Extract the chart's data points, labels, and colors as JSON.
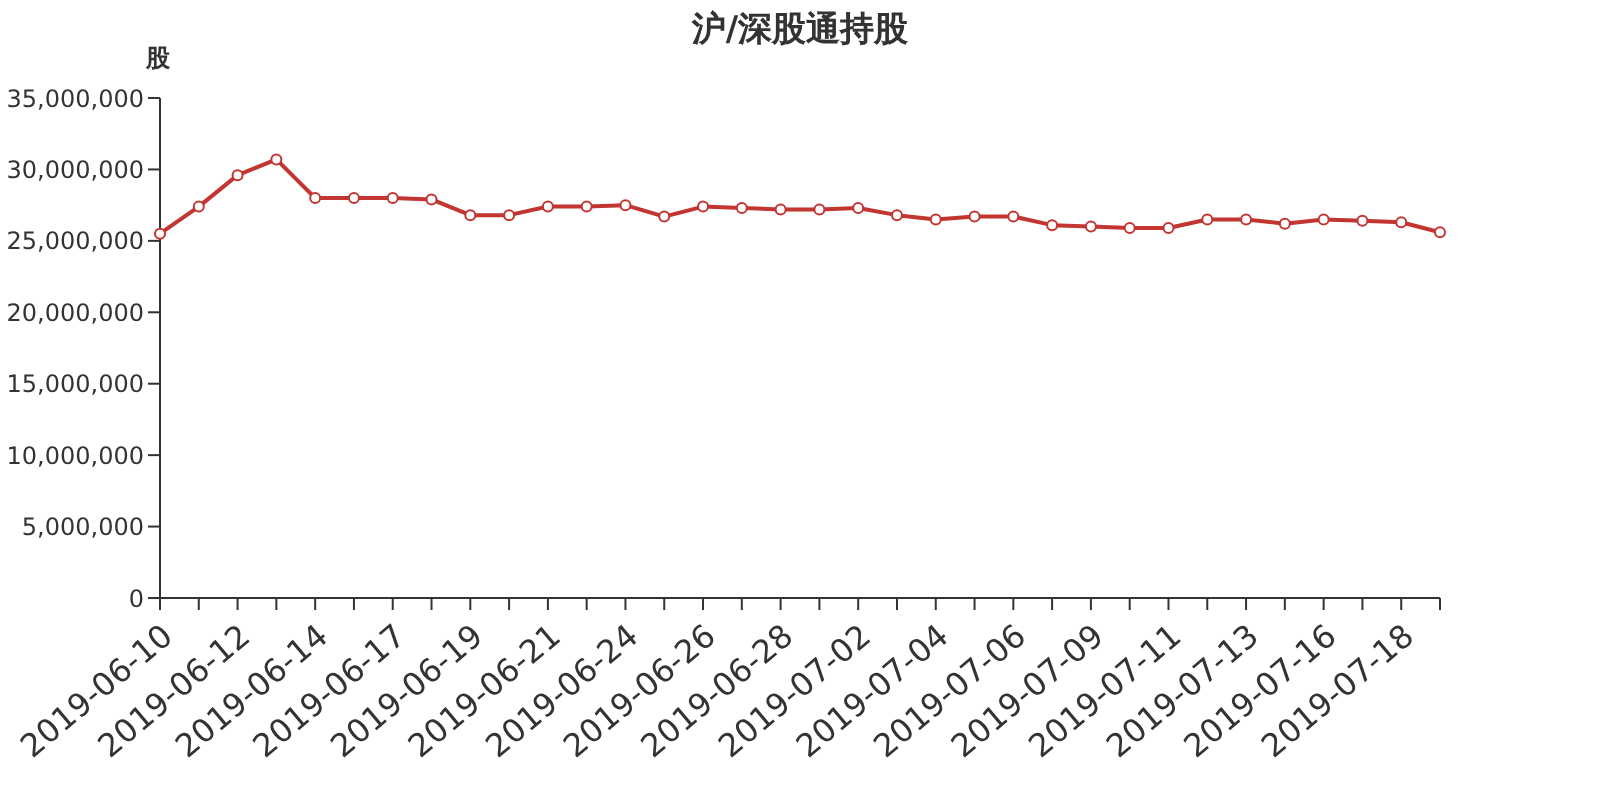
{
  "chart_data": {
    "type": "line",
    "title": "沪/深股通持股",
    "ylabel": "股",
    "categories": [
      "2019-06-10",
      null,
      "2019-06-12",
      null,
      "2019-06-14",
      null,
      "2019-06-17",
      null,
      "2019-06-19",
      null,
      "2019-06-21",
      null,
      "2019-06-24",
      null,
      "2019-06-26",
      null,
      "2019-06-28",
      null,
      "2019-07-02",
      null,
      "2019-07-04",
      null,
      "2019-07-06",
      null,
      "2019-07-09",
      null,
      "2019-07-11",
      null,
      "2019-07-13",
      null,
      "2019-07-16",
      null,
      "2019-07-18",
      null
    ],
    "series": [
      {
        "color": "#c23531",
        "values": [
          25500000,
          27400000,
          29600000,
          30700000,
          28000000,
          28000000,
          28000000,
          27900000,
          26800000,
          26800000,
          27400000,
          27400000,
          27500000,
          26700000,
          27400000,
          27300000,
          27200000,
          27200000,
          27300000,
          26800000,
          26500000,
          26700000,
          26700000,
          26100000,
          26000000,
          25900000,
          25900000,
          26500000,
          26500000,
          26200000,
          26500000,
          26400000,
          26300000,
          25600000
        ]
      }
    ],
    "ylim": [
      0,
      35000000
    ],
    "yticks": [
      0,
      {
        "value": 5000000,
        "label": "5,000,000"
      },
      {
        "value": 10000000,
        "label": "10,000,000"
      },
      {
        "value": 15000000,
        "label": "15,000,000"
      },
      {
        "value": 20000000,
        "label": "20,000,000"
      },
      {
        "value": 25000000,
        "label": "25,000,000"
      },
      {
        "value": 30000000,
        "label": "30,000,000"
      },
      {
        "value": 35000000,
        "label": "35,000,000"
      }
    ],
    "marker": "circle",
    "grid": false,
    "legend": false
  }
}
